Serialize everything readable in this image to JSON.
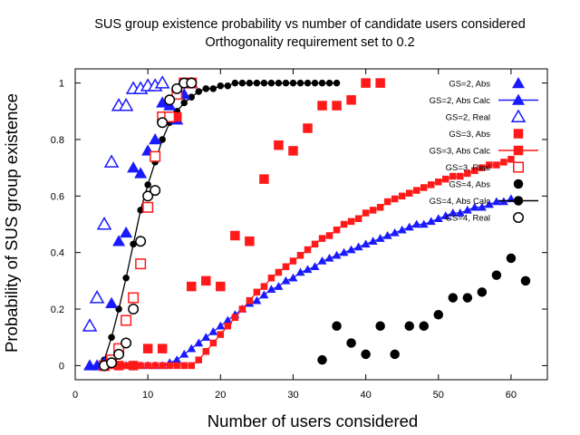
{
  "chart_data": {
    "type": "scatter",
    "title": "SUS group existence probability vs number of candidate users considered",
    "subtitle": "Orthogonality requirement set to 0.2",
    "xlabel": "Number of users considered",
    "ylabel": "Probability of SUS group existence",
    "xlim": [
      0,
      65
    ],
    "ylim": [
      -0.05,
      1.05
    ],
    "xticks": [
      "0",
      "10",
      "20",
      "30",
      "40",
      "50",
      "60"
    ],
    "yticks": [
      "0",
      "0.2",
      "0.4",
      "0.6",
      "0.8",
      "1"
    ],
    "grid": false,
    "legend_position": "top-right (inside)",
    "series": [
      {
        "name": "GS=2, Abs",
        "color": "#1a1aff",
        "marker": "filled-triangle",
        "line": false,
        "x": [
          2,
          3,
          4,
          5,
          6,
          7,
          8,
          9,
          10,
          11,
          12,
          13,
          14,
          15,
          16
        ],
        "y": [
          0.0,
          0.0,
          0.01,
          0.22,
          0.44,
          0.47,
          0.7,
          0.68,
          0.76,
          0.8,
          0.93,
          0.92,
          0.87,
          0.96,
          1.0
        ]
      },
      {
        "name": "GS=2, Abs Calc",
        "color": "#1a1aff",
        "marker": "filled-triangle",
        "line": true,
        "x": [
          2,
          3,
          4,
          5,
          6,
          7,
          8,
          9,
          10,
          11,
          12,
          13,
          14,
          15,
          16,
          17,
          18,
          19,
          20,
          21,
          22,
          23,
          24,
          25,
          26,
          27,
          28,
          29,
          30,
          31,
          32,
          33,
          34,
          35,
          36,
          37,
          38,
          39,
          40,
          41,
          42,
          43,
          44,
          45,
          46,
          47,
          48,
          49,
          50,
          51,
          52,
          53,
          54,
          55,
          56,
          57,
          58,
          59,
          60
        ],
        "y": [
          0.0,
          0.0,
          0.0,
          0.0,
          0.0,
          0.0,
          0.0,
          0.0,
          0.0,
          0.0,
          0.0,
          0.01,
          0.02,
          0.04,
          0.06,
          0.08,
          0.1,
          0.12,
          0.14,
          0.16,
          0.18,
          0.2,
          0.22,
          0.23,
          0.25,
          0.27,
          0.28,
          0.3,
          0.31,
          0.33,
          0.34,
          0.35,
          0.37,
          0.38,
          0.39,
          0.4,
          0.41,
          0.42,
          0.43,
          0.44,
          0.45,
          0.46,
          0.47,
          0.48,
          0.49,
          0.5,
          0.5,
          0.51,
          0.52,
          0.53,
          0.54,
          0.54,
          0.55,
          0.56,
          0.56,
          0.57,
          0.58,
          0.58,
          0.59
        ]
      },
      {
        "name": "GS=2, Real",
        "color": "#1a1aff",
        "marker": "open-triangle",
        "line": false,
        "x": [
          2,
          3,
          4,
          5,
          6,
          7,
          8,
          9,
          10,
          11,
          12
        ],
        "y": [
          0.14,
          0.24,
          0.5,
          0.72,
          0.92,
          0.92,
          0.98,
          0.98,
          0.99,
          0.99,
          1.0
        ]
      },
      {
        "name": "GS=3, Abs",
        "color": "#ff1a1a",
        "marker": "filled-square",
        "line": false,
        "x": [
          4,
          6,
          8,
          10,
          12,
          14,
          16,
          18,
          20,
          22,
          24,
          26,
          28,
          30,
          32,
          34,
          36,
          38,
          40,
          42
        ],
        "y": [
          0.0,
          0.0,
          0.0,
          0.06,
          0.06,
          0.88,
          0.28,
          0.3,
          0.28,
          0.46,
          0.44,
          0.66,
          0.78,
          0.76,
          0.84,
          0.92,
          0.92,
          0.94,
          1.0,
          1.0
        ]
      },
      {
        "name": "GS=3, Abs Calc",
        "color": "#ff1a1a",
        "marker": "filled-square",
        "line": true,
        "x": [
          4,
          5,
          6,
          7,
          8,
          9,
          10,
          11,
          12,
          13,
          14,
          15,
          16,
          17,
          18,
          19,
          20,
          21,
          22,
          23,
          24,
          25,
          26,
          27,
          28,
          29,
          30,
          31,
          32,
          33,
          34,
          35,
          36,
          37,
          38,
          39,
          40,
          41,
          42,
          43,
          44,
          45,
          46,
          47,
          48,
          49,
          50,
          51,
          52,
          53,
          54,
          55,
          56,
          57,
          58,
          59,
          60
        ],
        "y": [
          0.0,
          0.0,
          0.0,
          0.0,
          0.0,
          0.0,
          0.0,
          0.0,
          0.0,
          0.0,
          0.0,
          0.0,
          0.0,
          0.02,
          0.05,
          0.08,
          0.11,
          0.14,
          0.17,
          0.2,
          0.23,
          0.26,
          0.28,
          0.31,
          0.33,
          0.35,
          0.37,
          0.39,
          0.41,
          0.43,
          0.45,
          0.46,
          0.48,
          0.5,
          0.51,
          0.52,
          0.54,
          0.55,
          0.56,
          0.58,
          0.59,
          0.6,
          0.61,
          0.62,
          0.63,
          0.64,
          0.65,
          0.66,
          0.67,
          0.67,
          0.68,
          0.69,
          0.7,
          0.71,
          0.71,
          0.72,
          0.73
        ]
      },
      {
        "name": "GS=3, Real",
        "color": "#ff1a1a",
        "marker": "open-square",
        "line": false,
        "x": [
          4,
          5,
          6,
          7,
          8,
          9,
          10,
          11,
          12,
          13,
          14,
          15,
          16
        ],
        "y": [
          0.0,
          0.02,
          0.06,
          0.16,
          0.24,
          0.36,
          0.56,
          0.74,
          0.88,
          0.88,
          0.96,
          1.0,
          1.0
        ]
      },
      {
        "name": "GS=4, Abs",
        "color": "#000000",
        "marker": "filled-circle",
        "line": false,
        "x": [
          34,
          36,
          38,
          40,
          42,
          44,
          46,
          48,
          50,
          52,
          54,
          56,
          58,
          60,
          62
        ],
        "y": [
          0.02,
          0.14,
          0.08,
          0.04,
          0.14,
          0.04,
          0.14,
          0.14,
          0.18,
          0.24,
          0.24,
          0.26,
          0.32,
          0.38,
          0.3
        ]
      },
      {
        "name": "GS=4, Abs Calc",
        "color": "#000000",
        "marker": "filled-circle",
        "line": true,
        "x": [
          4,
          5,
          6,
          7,
          8,
          9,
          10,
          11,
          12,
          13,
          14,
          15,
          16,
          17,
          18,
          19,
          20,
          21,
          22,
          23,
          24,
          25,
          26,
          27,
          28,
          29,
          30,
          31,
          32,
          33,
          34,
          35,
          36
        ],
        "y": [
          0.02,
          0.1,
          0.2,
          0.31,
          0.43,
          0.55,
          0.64,
          0.72,
          0.8,
          0.86,
          0.9,
          0.93,
          0.95,
          0.97,
          0.98,
          0.98,
          0.99,
          0.99,
          1.0,
          1.0,
          1.0,
          1.0,
          1.0,
          1.0,
          1.0,
          1.0,
          1.0,
          1.0,
          1.0,
          1.0,
          1.0,
          1.0,
          1.0
        ]
      },
      {
        "name": "GS=4, Real",
        "color": "#000000",
        "marker": "open-circle",
        "line": false,
        "x": [
          4,
          5,
          6,
          7,
          8,
          9,
          10,
          11,
          12,
          13,
          14,
          15,
          16
        ],
        "y": [
          0.0,
          0.01,
          0.04,
          0.08,
          0.2,
          0.44,
          0.6,
          0.62,
          0.86,
          0.94,
          0.98,
          1.0,
          1.0
        ]
      }
    ]
  }
}
